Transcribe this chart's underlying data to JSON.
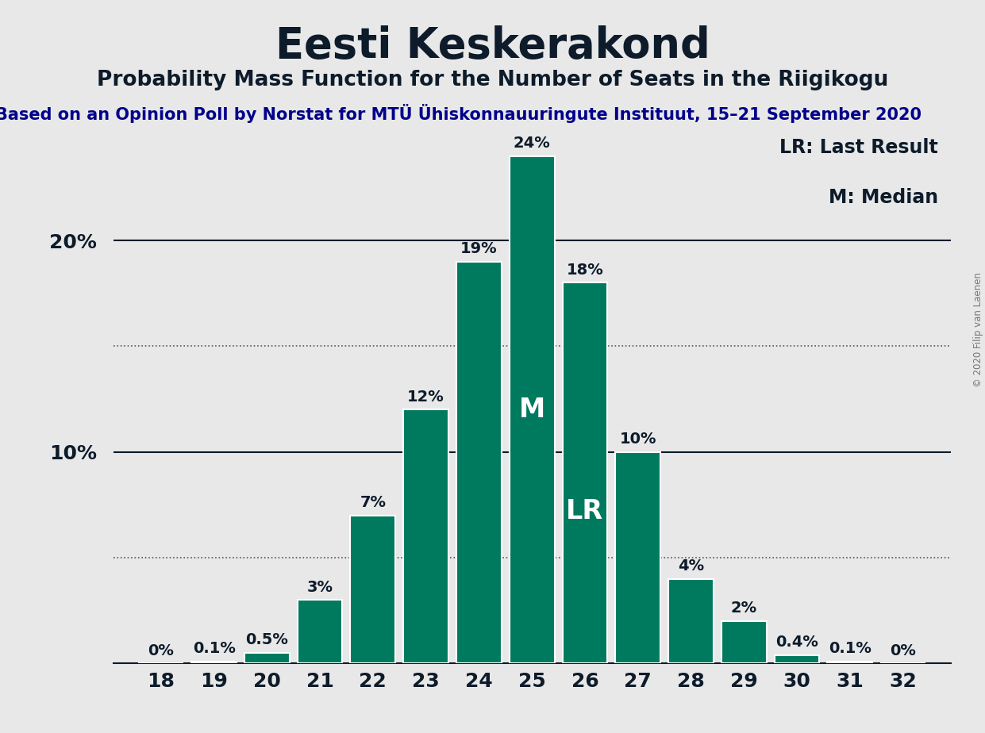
{
  "title": "Eesti Keskerakond",
  "subtitle": "Probability Mass Function for the Number of Seats in the Riigikogu",
  "source_line": "Based on an Opinion Poll by Norstat for MTÜ Ühiskonnauuringute Instituut, 15–21 September 2020",
  "copyright": "© 2020 Filip van Laenen",
  "seats": [
    18,
    19,
    20,
    21,
    22,
    23,
    24,
    25,
    26,
    27,
    28,
    29,
    30,
    31,
    32
  ],
  "probabilities": [
    0.0,
    0.1,
    0.5,
    3.0,
    7.0,
    12.0,
    19.0,
    24.0,
    18.0,
    10.0,
    4.0,
    2.0,
    0.4,
    0.1,
    0.0
  ],
  "bar_color": "#007A5E",
  "bar_edge_color": "#FFFFFF",
  "median_seat": 25,
  "last_result_seat": 26,
  "background_color": "#E8E8E8",
  "title_color": "#0D1B2A",
  "subtitle_color": "#0D1B2A",
  "source_color": "#00008B",
  "gridline_solid_color": "#0D1B2A",
  "gridline_dot_color": "#555555",
  "tick_label_color": "#0D1B2A",
  "tick_fontsize": 18,
  "title_fontsize": 38,
  "subtitle_fontsize": 19,
  "source_fontsize": 15,
  "bar_label_fontsize": 14,
  "legend_fontsize": 17,
  "m_lr_fontsize": 24,
  "ylim": [
    0,
    26
  ],
  "dotted_yticks": [
    5,
    15
  ],
  "solid_yticks": [
    10,
    20
  ],
  "bar_label_color": "#0D1B2A"
}
